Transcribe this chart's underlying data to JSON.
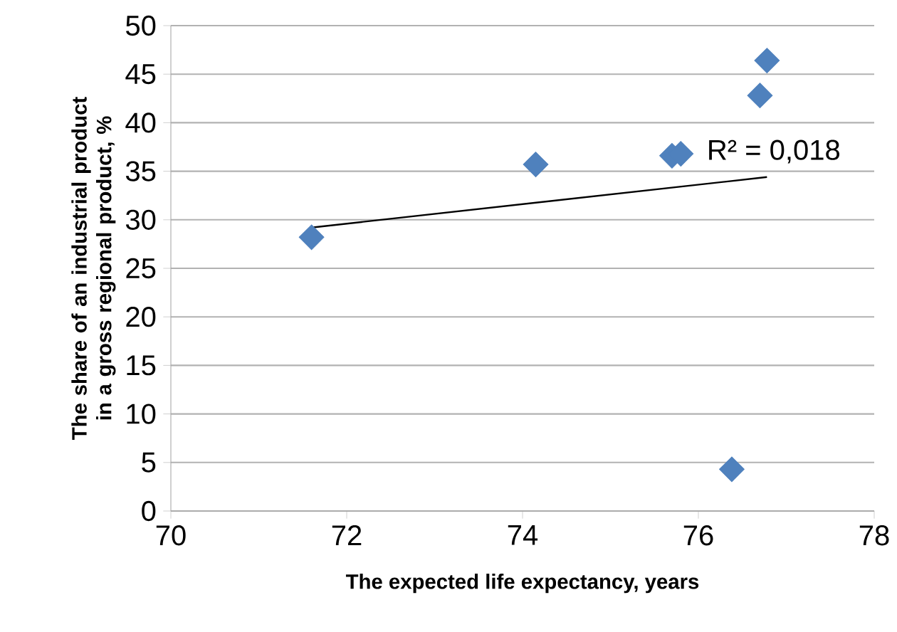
{
  "chart_data": {
    "type": "scatter",
    "xlabel": "The expected life expectancy, years",
    "ylabel": "The share of an industrial product in a gross regional product, %",
    "series": [
      {
        "color": "#4f81bd",
        "marker": "diamond",
        "x": [
          71.6,
          74.15,
          75.7,
          75.8,
          76.7,
          76.78,
          76.38
        ],
        "values": [
          28.2,
          35.7,
          36.6,
          36.8,
          42.8,
          46.4,
          4.3
        ]
      },
      {
        "type": "line",
        "color": "#000000",
        "marker": "none",
        "x": [
          71.6,
          76.78
        ],
        "values": [
          29.2,
          34.4
        ]
      }
    ],
    "annotations": [
      {
        "text": "R² = 0,018",
        "x": 76.78,
        "y": 34.4
      }
    ],
    "xlim": [
      70,
      78
    ],
    "xticks": [
      70,
      72,
      74,
      76,
      78
    ],
    "ylim": [
      0,
      50
    ],
    "yticks": [
      0,
      5,
      10,
      15,
      20,
      25,
      30,
      35,
      40,
      45,
      50
    ],
    "grid": "y"
  }
}
